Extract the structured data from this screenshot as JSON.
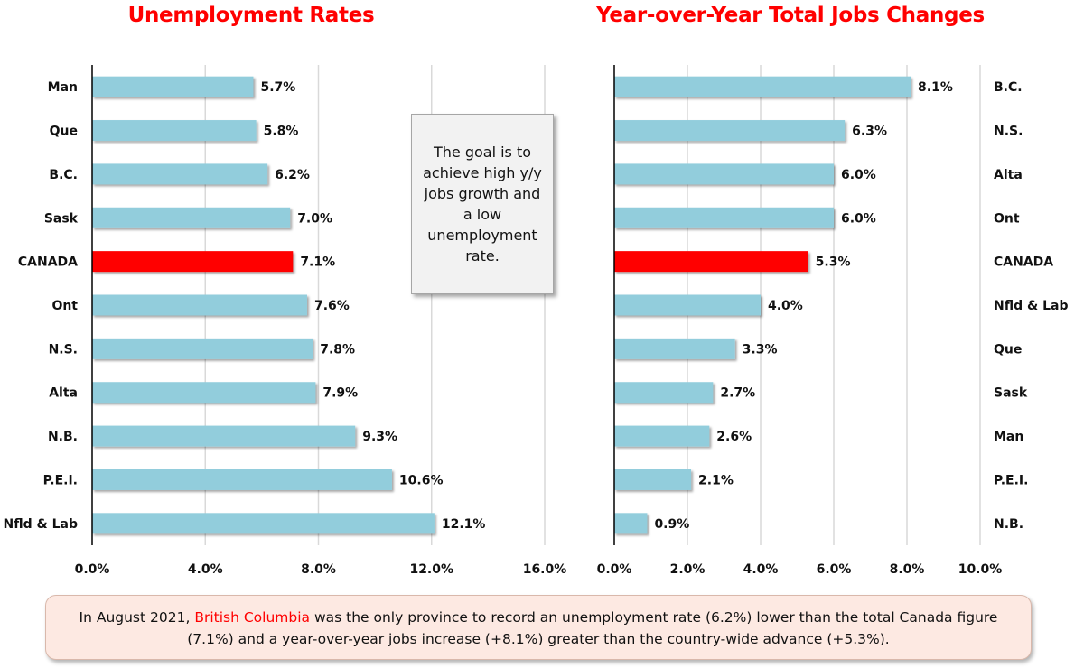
{
  "colors": {
    "bar": "#92cddc",
    "highlight": "#ff0000",
    "grid": "#d9d9d9",
    "axis": "#000000"
  },
  "chart_data": [
    {
      "type": "bar",
      "orientation": "horizontal",
      "title": "Unemployment Rates",
      "categories": [
        "Man",
        "Que",
        "B.C.",
        "Sask",
        "CANADA",
        "Ont",
        "N.S.",
        "Alta",
        "N.B.",
        "P.E.I.",
        "Nfld & Lab"
      ],
      "values": [
        5.7,
        5.8,
        6.2,
        7.0,
        7.1,
        7.6,
        7.8,
        7.9,
        9.3,
        10.6,
        12.1
      ],
      "value_labels": [
        "5.7%",
        "5.8%",
        "6.2%",
        "7.0%",
        "7.1%",
        "7.6%",
        "7.8%",
        "7.9%",
        "9.3%",
        "10.6%",
        "12.1%"
      ],
      "highlight": "CANADA",
      "xlim": [
        0,
        16
      ],
      "xticks": [
        0,
        4,
        8,
        12,
        16
      ],
      "xtick_labels": [
        "0.0%",
        "4.0%",
        "8.0%",
        "12.0%",
        "16.0%"
      ],
      "category_labels_side": "left",
      "grid": true
    },
    {
      "type": "bar",
      "orientation": "horizontal",
      "title": "Year-over-Year Total Jobs Changes",
      "categories": [
        "B.C.",
        "N.S.",
        "Alta",
        "Ont",
        "CANADA",
        "Nfld & Lab",
        "Que",
        "Sask",
        "Man",
        "P.E.I.",
        "N.B."
      ],
      "values": [
        8.1,
        6.3,
        6.0,
        6.0,
        5.3,
        4.0,
        3.3,
        2.7,
        2.6,
        2.1,
        0.9
      ],
      "value_labels": [
        "8.1%",
        "6.3%",
        "6.0%",
        "6.0%",
        "5.3%",
        "4.0%",
        "3.3%",
        "2.7%",
        "2.6%",
        "2.1%",
        "0.9%"
      ],
      "highlight": "CANADA",
      "xlim": [
        0,
        10
      ],
      "xticks": [
        0,
        2,
        4,
        6,
        8,
        10
      ],
      "xtick_labels": [
        "0.0%",
        "2.0%",
        "4.0%",
        "6.0%",
        "8.0%",
        "10.0%"
      ],
      "category_labels_side": "right",
      "grid": true
    }
  ],
  "callout": {
    "text": "The goal is to achieve high y/y jobs growth and a low unemployment rate."
  },
  "footnote": {
    "prefix": "In August 2021, ",
    "highlight": "British Columbia",
    "suffix": " was the only province to record an unemployment rate (6.2%) lower than the total Canada figure (7.1%) and a year-over-year jobs increase (+8.1%) greater than the country-wide advance (+5.3%)."
  }
}
